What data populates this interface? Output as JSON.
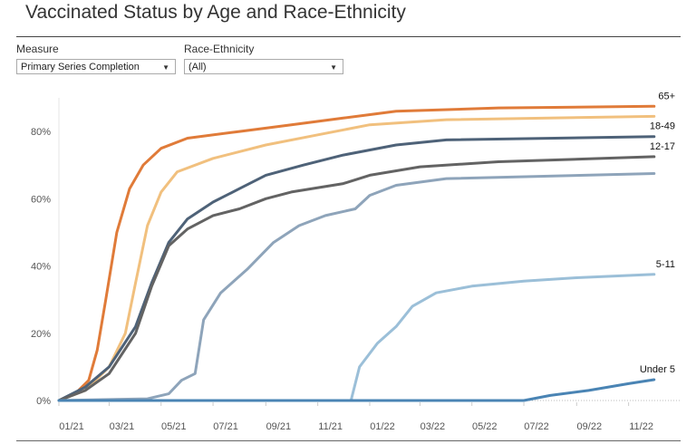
{
  "title": "Vaccinated Status by Age and Race-Ethnicity",
  "filters": {
    "measure": {
      "label": "Measure",
      "value": "Primary Series Completion"
    },
    "race": {
      "label": "Race-Ethnicity",
      "value": "(All)"
    }
  },
  "chart_data": {
    "type": "line",
    "xlabel": "",
    "ylabel": "",
    "ylim": [
      0,
      90
    ],
    "x_ticks": [
      "01/21",
      "03/21",
      "05/21",
      "07/21",
      "09/21",
      "11/21",
      "01/22",
      "03/22",
      "05/22",
      "07/22",
      "09/22",
      "11/22"
    ],
    "y_ticks": [
      0,
      20,
      40,
      60,
      80
    ],
    "grid": false,
    "series": [
      {
        "name": "65+",
        "color": "#e07b39",
        "points": [
          [
            "2021-01-01",
            0
          ],
          [
            "2021-01-20",
            2
          ],
          [
            "2021-02-05",
            6
          ],
          [
            "2021-02-15",
            15
          ],
          [
            "2021-02-25",
            30
          ],
          [
            "2021-03-10",
            50
          ],
          [
            "2021-03-25",
            63
          ],
          [
            "2021-04-10",
            70
          ],
          [
            "2021-05-01",
            75
          ],
          [
            "2021-06-01",
            78
          ],
          [
            "2021-08-01",
            80
          ],
          [
            "2021-10-01",
            82
          ],
          [
            "2021-12-01",
            84
          ],
          [
            "2022-02-01",
            86
          ],
          [
            "2022-06-01",
            87
          ],
          [
            "2022-12-01",
            87.5
          ]
        ]
      },
      {
        "name": "",
        "color": "#f1c07e",
        "points": [
          [
            "2021-01-01",
            0
          ],
          [
            "2021-02-01",
            3
          ],
          [
            "2021-03-01",
            10
          ],
          [
            "2021-03-20",
            20
          ],
          [
            "2021-04-01",
            35
          ],
          [
            "2021-04-15",
            52
          ],
          [
            "2021-05-01",
            62
          ],
          [
            "2021-05-20",
            68
          ],
          [
            "2021-07-01",
            72
          ],
          [
            "2021-09-01",
            76
          ],
          [
            "2021-11-01",
            79
          ],
          [
            "2022-01-01",
            82
          ],
          [
            "2022-04-01",
            83.5
          ],
          [
            "2022-12-01",
            84.5
          ]
        ]
      },
      {
        "name": "18-49",
        "color": "#4e6278",
        "points": [
          [
            "2021-01-01",
            0
          ],
          [
            "2021-02-01",
            4
          ],
          [
            "2021-03-01",
            10
          ],
          [
            "2021-04-01",
            22
          ],
          [
            "2021-04-20",
            35
          ],
          [
            "2021-05-10",
            47
          ],
          [
            "2021-06-01",
            54
          ],
          [
            "2021-07-01",
            59
          ],
          [
            "2021-08-01",
            63
          ],
          [
            "2021-09-01",
            67
          ],
          [
            "2021-10-15",
            70
          ],
          [
            "2021-12-01",
            73
          ],
          [
            "2022-02-01",
            76
          ],
          [
            "2022-04-01",
            77.5
          ],
          [
            "2022-12-01",
            78.5
          ]
        ]
      },
      {
        "name": "12-17",
        "color": "#636363",
        "points": [
          [
            "2021-01-01",
            0
          ],
          [
            "2021-02-01",
            3
          ],
          [
            "2021-03-01",
            8
          ],
          [
            "2021-04-01",
            20
          ],
          [
            "2021-04-20",
            34
          ],
          [
            "2021-05-10",
            46
          ],
          [
            "2021-06-01",
            51
          ],
          [
            "2021-07-01",
            55
          ],
          [
            "2021-08-01",
            57
          ],
          [
            "2021-09-01",
            60
          ],
          [
            "2021-10-01",
            62
          ],
          [
            "2021-12-01",
            64.5
          ],
          [
            "2022-01-01",
            67
          ],
          [
            "2022-03-01",
            69.5
          ],
          [
            "2022-06-01",
            71
          ],
          [
            "2022-12-01",
            72.5
          ]
        ]
      },
      {
        "name": "",
        "color": "#8ea4ba",
        "points": [
          [
            "2021-01-01",
            0
          ],
          [
            "2021-04-15",
            0.5
          ],
          [
            "2021-05-10",
            2
          ],
          [
            "2021-05-25",
            6
          ],
          [
            "2021-06-10",
            8
          ],
          [
            "2021-06-20",
            24
          ],
          [
            "2021-07-10",
            32
          ],
          [
            "2021-08-10",
            39
          ],
          [
            "2021-09-10",
            47
          ],
          [
            "2021-10-10",
            52
          ],
          [
            "2021-11-10",
            55
          ],
          [
            "2021-12-15",
            57
          ],
          [
            "2022-01-01",
            61
          ],
          [
            "2022-02-01",
            64
          ],
          [
            "2022-04-01",
            66
          ],
          [
            "2022-12-01",
            67.5
          ]
        ]
      },
      {
        "name": "5-11",
        "color": "#9bbfd8",
        "points": [
          [
            "2021-01-01",
            0
          ],
          [
            "2021-12-10",
            0
          ],
          [
            "2021-12-20",
            10
          ],
          [
            "2022-01-10",
            17
          ],
          [
            "2022-02-01",
            22
          ],
          [
            "2022-02-20",
            28
          ],
          [
            "2022-03-20",
            32
          ],
          [
            "2022-05-01",
            34
          ],
          [
            "2022-07-01",
            35.5
          ],
          [
            "2022-09-01",
            36.5
          ],
          [
            "2022-12-01",
            37.5
          ]
        ]
      },
      {
        "name": "Under 5",
        "color": "#4a84b4",
        "points": [
          [
            "2021-01-01",
            0
          ],
          [
            "2021-12-10",
            0
          ],
          [
            "2022-07-01",
            0
          ],
          [
            "2022-08-01",
            1.5
          ],
          [
            "2022-09-15",
            3
          ],
          [
            "2022-11-01",
            5
          ],
          [
            "2022-12-01",
            6.2
          ]
        ]
      }
    ]
  }
}
